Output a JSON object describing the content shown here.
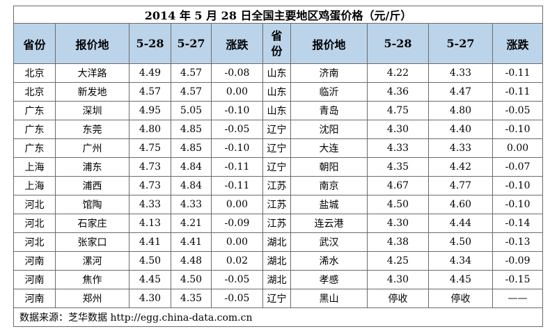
{
  "title": "2014 年 5 月 28 日全国主要地区鸡蛋价格（元/斤）",
  "headers": [
    "省份",
    "报价地",
    "5-28",
    "5-27",
    "涨跌",
    "省份",
    "报价地",
    "5-28",
    "5-27",
    "涨跌"
  ],
  "rows": [
    [
      "北京",
      "大洋路",
      "4.49",
      "4.57",
      "-0.08",
      "山东",
      "济南",
      "4.22",
      "4.33",
      "-0.11"
    ],
    [
      "北京",
      "新发地",
      "4.57",
      "4.57",
      "0.00",
      "山东",
      "临沂",
      "4.36",
      "4.47",
      "-0.11"
    ],
    [
      "广东",
      "深圳",
      "4.95",
      "5.05",
      "-0.10",
      "山东",
      "青岛",
      "4.75",
      "4.80",
      "-0.05"
    ],
    [
      "广东",
      "东莞",
      "4.80",
      "4.85",
      "-0.05",
      "辽宁",
      "沈阳",
      "4.30",
      "4.40",
      "-0.10"
    ],
    [
      "广东",
      "广州",
      "4.75",
      "4.85",
      "-0.10",
      "辽宁",
      "大连",
      "4.33",
      "4.33",
      "0.00"
    ],
    [
      "上海",
      "浦东",
      "4.73",
      "4.84",
      "-0.11",
      "辽宁",
      "朝阳",
      "4.35",
      "4.42",
      "-0.07"
    ],
    [
      "上海",
      "浦西",
      "4.73",
      "4.84",
      "-0.11",
      "江苏",
      "南京",
      "4.67",
      "4.77",
      "-0.10"
    ],
    [
      "河北",
      "馆陶",
      "4.33",
      "4.33",
      "0.00",
      "江苏",
      "盐城",
      "4.50",
      "4.60",
      "-0.10"
    ],
    [
      "河北",
      "石家庄",
      "4.13",
      "4.21",
      "-0.09",
      "江苏",
      "连云港",
      "4.30",
      "4.44",
      "-0.14"
    ],
    [
      "河北",
      "张家口",
      "4.41",
      "4.41",
      "0.00",
      "湖北",
      "武汉",
      "4.38",
      "4.50",
      "-0.13"
    ],
    [
      "河南",
      "漯河",
      "4.50",
      "4.48",
      "0.02",
      "湖北",
      "浠水",
      "4.25",
      "4.34",
      "-0.09"
    ],
    [
      "河南",
      "焦作",
      "4.45",
      "4.50",
      "-0.05",
      "湖北",
      "孝感",
      "4.30",
      "4.45",
      "-0.15"
    ],
    [
      "河南",
      "郑州",
      "4.30",
      "4.35",
      "-0.05",
      "辽宁",
      "黑山",
      "停收",
      "停收",
      "——"
    ]
  ],
  "source": "数据来源：芝华数据 http://egg.china-data.com.cn",
  "colors": {
    "header_bg": "#bcd4ea",
    "up": "#d40000",
    "down": "#00a000"
  }
}
